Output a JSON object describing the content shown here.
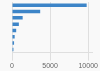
{
  "chart_data": {
    "type": "bar",
    "orientation": "horizontal",
    "categories": [
      null,
      null,
      null,
      null,
      null,
      null,
      null,
      null
    ],
    "values": [
      9800,
      3700,
      1400,
      900,
      550,
      350,
      270,
      190
    ],
    "color": "#3d85c8",
    "xlim": [
      0,
      10500
    ],
    "xticks": [
      0,
      5000,
      10000
    ],
    "grid": true,
    "tick_labels": "x"
  }
}
